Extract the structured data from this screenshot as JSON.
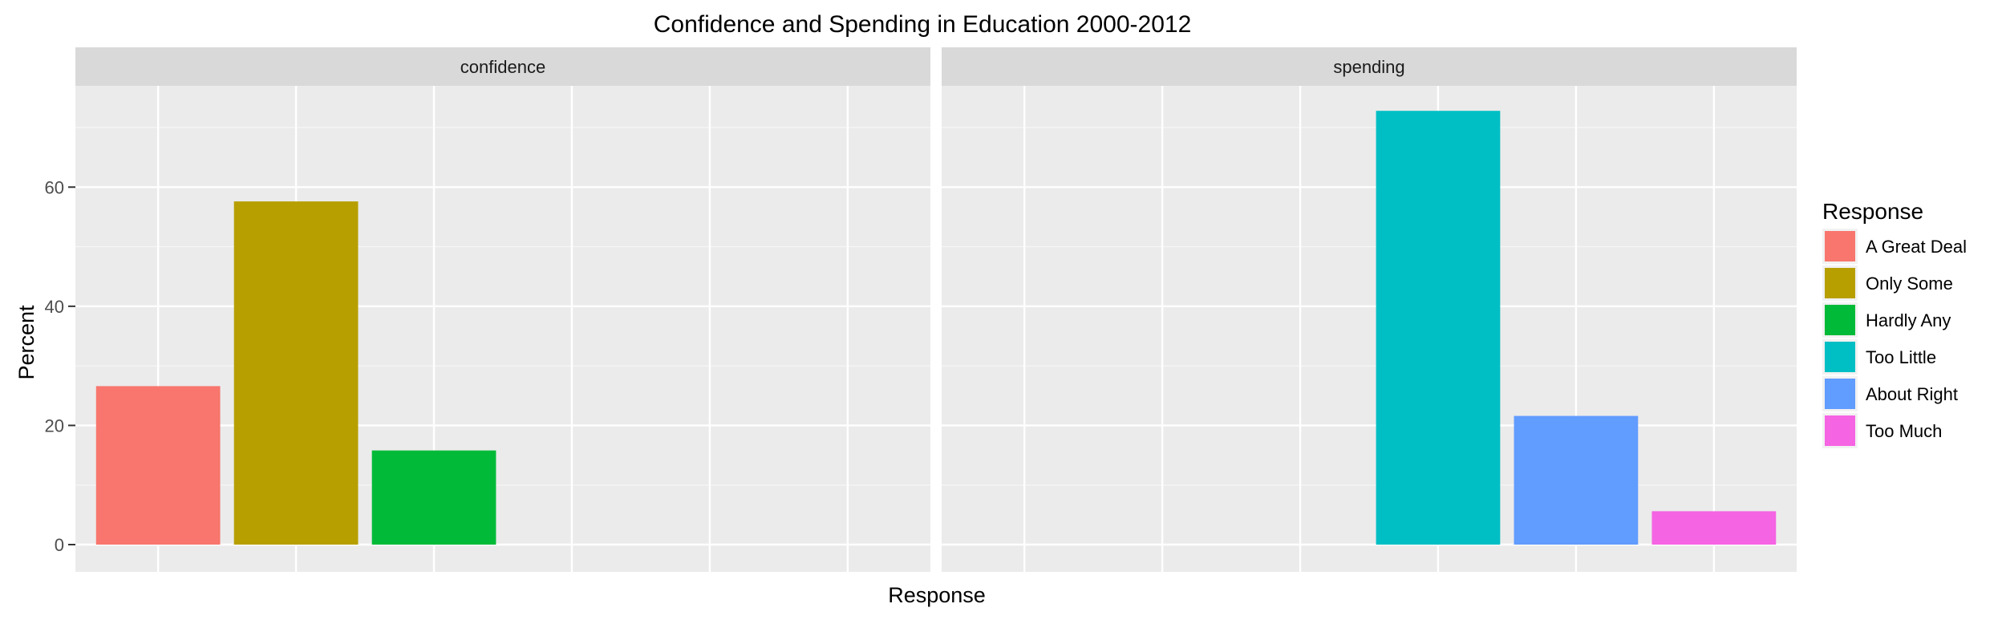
{
  "chart_data": {
    "type": "bar",
    "title": "Confidence and Spending in Education 2000-2012",
    "xlabel": "Response",
    "ylabel": "Percent",
    "ylim": [
      0,
      77
    ],
    "yticks": [
      0,
      20,
      40,
      60
    ],
    "grid": true,
    "categories": [
      "A Great Deal",
      "Only Some",
      "Hardly Any",
      "Too Little",
      "About Right",
      "Too Much"
    ],
    "facets": [
      {
        "name": "confidence",
        "values": [
          26.6,
          57.6,
          15.8,
          null,
          null,
          null
        ]
      },
      {
        "name": "spending",
        "values": [
          null,
          null,
          null,
          72.8,
          21.6,
          5.6
        ]
      }
    ],
    "legend": {
      "title": "Response",
      "placement": "right",
      "entries": [
        {
          "label": "A Great Deal",
          "color": "#F8766D"
        },
        {
          "label": "Only Some",
          "color": "#B79F00"
        },
        {
          "label": "Hardly Any",
          "color": "#00BA38"
        },
        {
          "label": "Too Little",
          "color": "#00BFC4"
        },
        {
          "label": "About Right",
          "color": "#619CFF"
        },
        {
          "label": "Too Much",
          "color": "#F564E3"
        }
      ]
    },
    "colors": {
      "panel_bg": "#EBEBEB",
      "strip_bg": "#D9D9D9",
      "grid": "#FFFFFF"
    }
  }
}
